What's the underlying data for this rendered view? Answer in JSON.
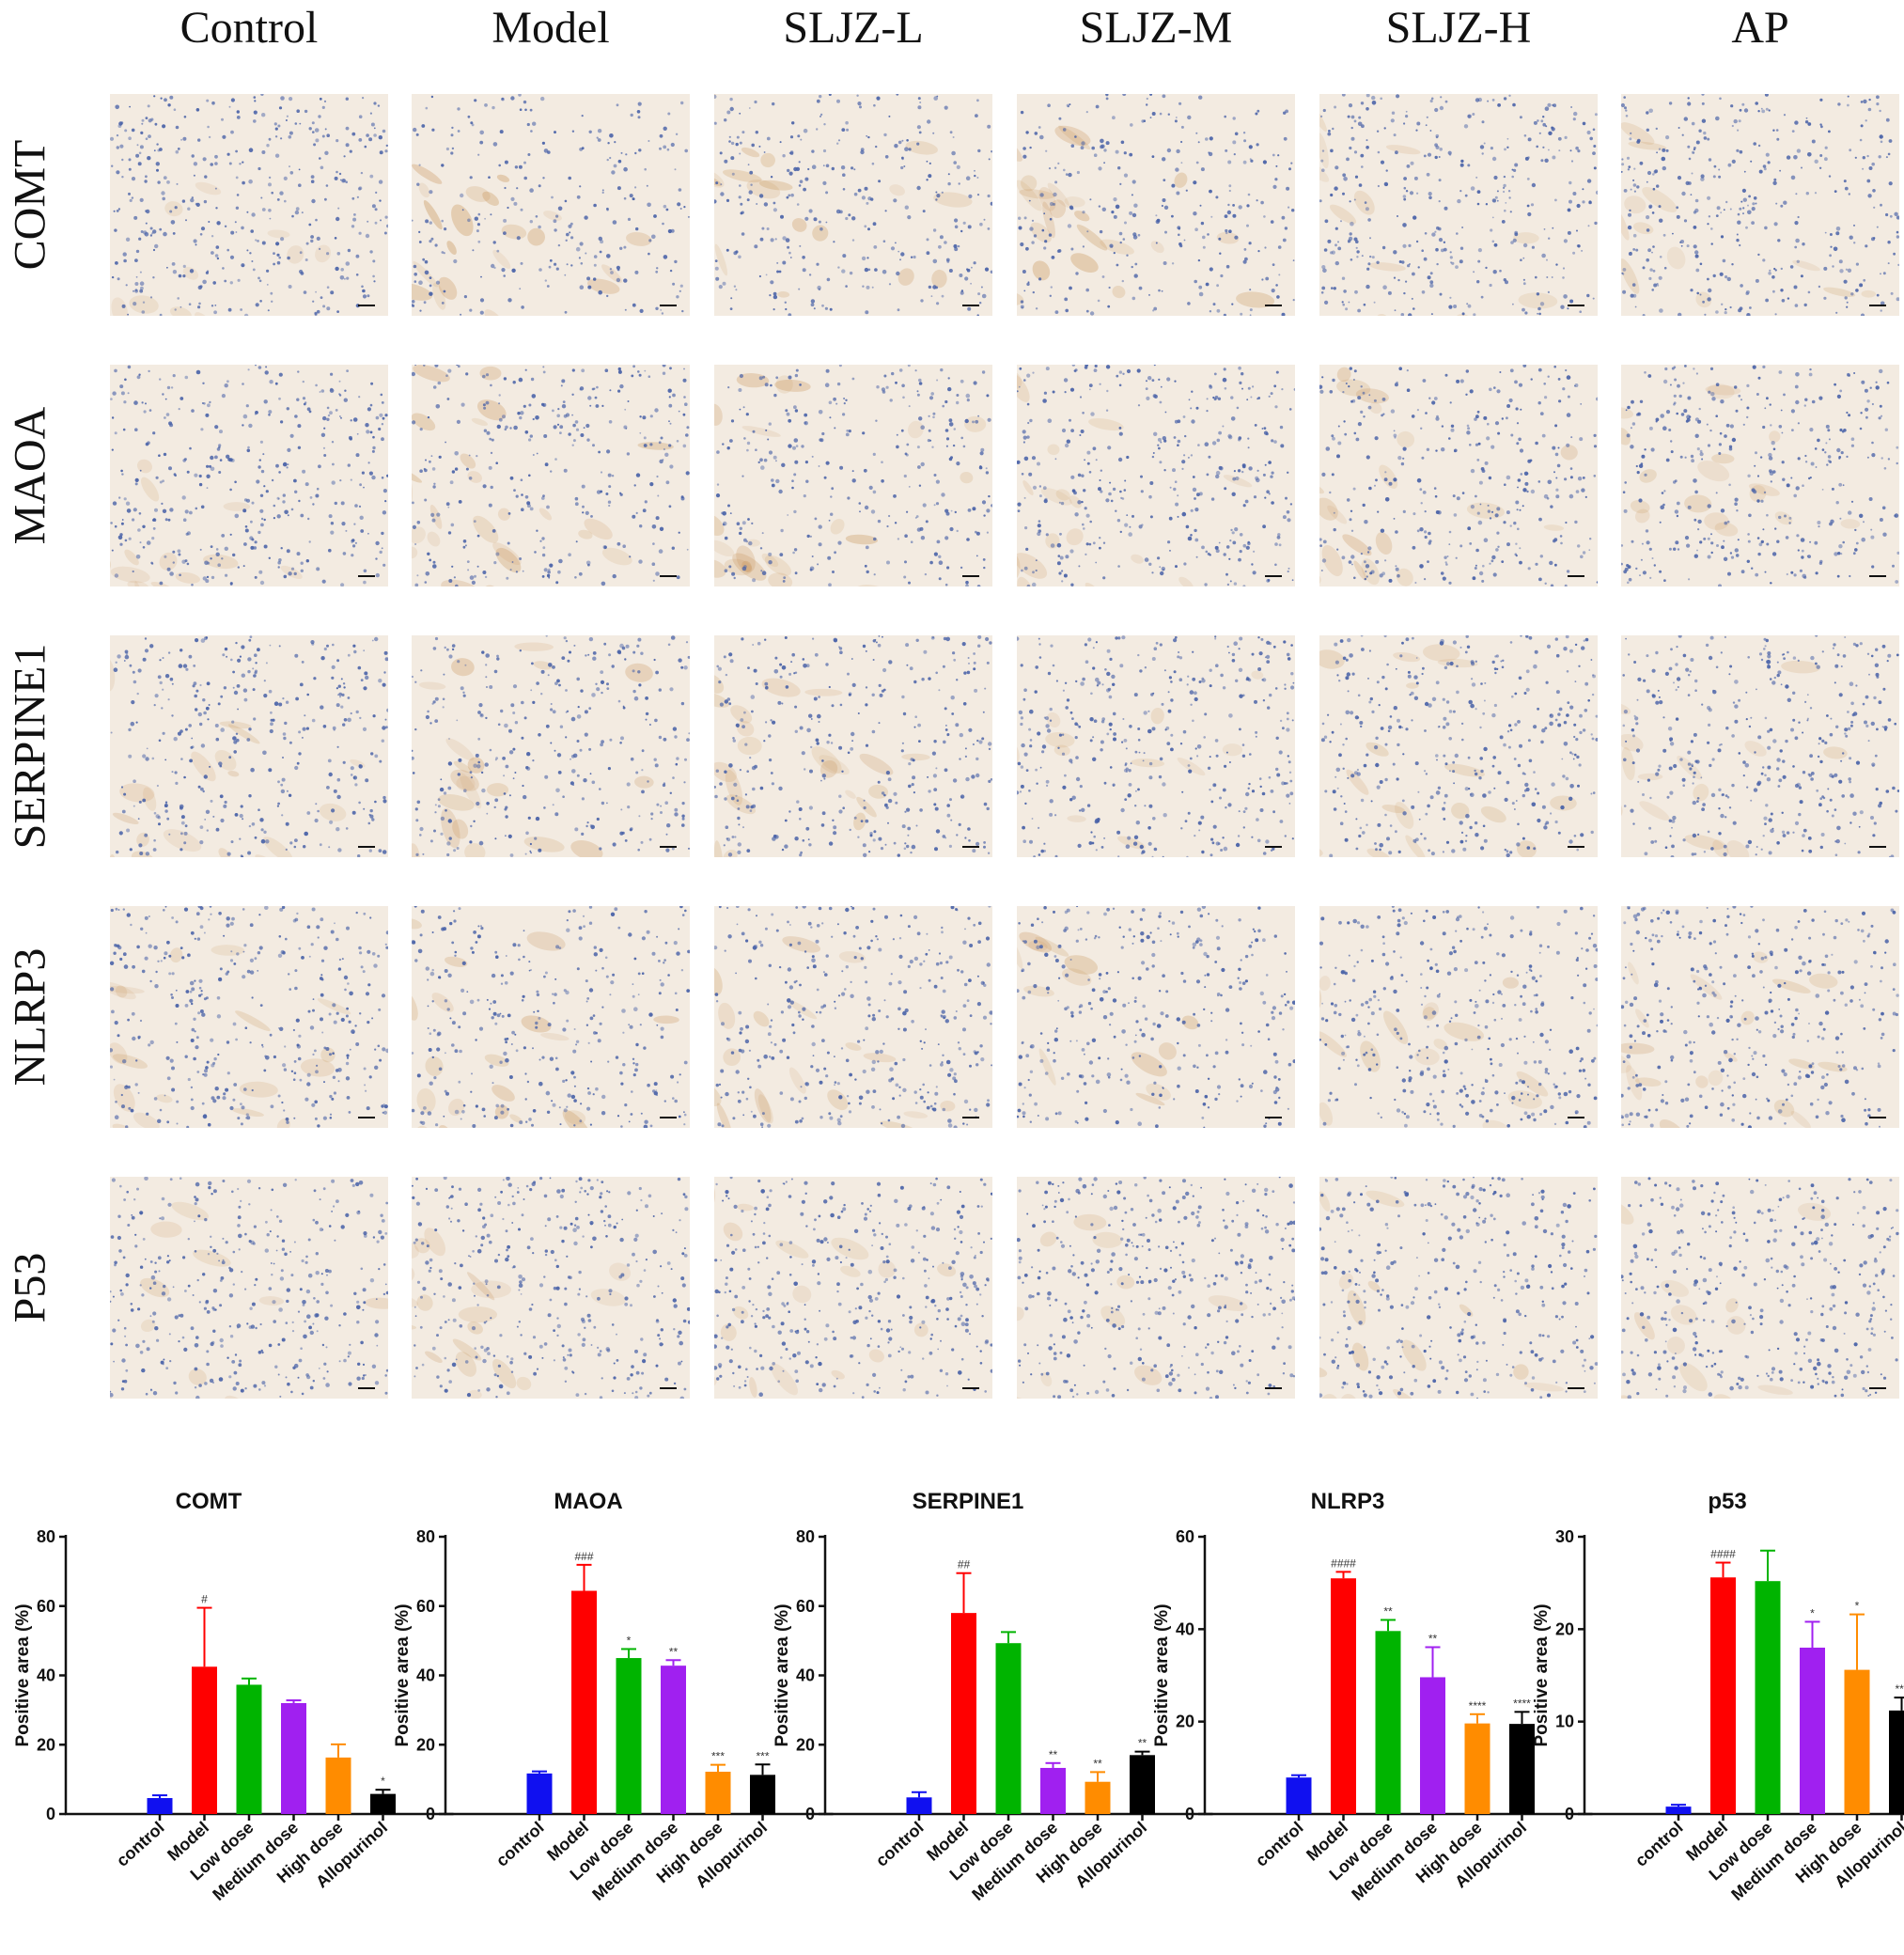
{
  "micrographs": {
    "columns": [
      "Control",
      "Model",
      "SLJZ-L",
      "SLJZ-M",
      "SLJZ-H",
      "AP"
    ],
    "rows": [
      "COMT",
      "MAOA",
      "SERPINE1",
      "NLRP3",
      "P53"
    ]
  },
  "colors": {
    "tissue_background": "#f3ebe1",
    "hematoxylin_nuclei": "#4a63a8",
    "dab_stain": "#c8955a",
    "bar_colors": [
      "#1010f0",
      "#ff0000",
      "#00b400",
      "#a020f0",
      "#ff8c00",
      "#000000"
    ]
  },
  "chart_data": [
    {
      "type": "bar",
      "title": "COMT",
      "xlabel": "",
      "ylabel": "Positive area (%)",
      "ylim": [
        0,
        80
      ],
      "yticks": [
        0,
        20,
        40,
        60,
        80
      ],
      "categories": [
        "control",
        "Model",
        "Low dose",
        "Medium dose",
        "High dose",
        "Allopurinol"
      ],
      "values": [
        4.6,
        42.5,
        37.3,
        32.0,
        16.3,
        5.8
      ],
      "errors": [
        0.8,
        17.0,
        1.8,
        0.8,
        3.8,
        1.2
      ],
      "annotations": [
        "",
        "#",
        "",
        "",
        "",
        "*"
      ]
    },
    {
      "type": "bar",
      "title": "MAOA",
      "xlabel": "",
      "ylabel": "Positive area (%)",
      "ylim": [
        0,
        80
      ],
      "yticks": [
        0,
        20,
        40,
        60,
        80
      ],
      "categories": [
        "control",
        "Model",
        "Low dose",
        "Medium dose",
        "High dose",
        "Allopurinol"
      ],
      "values": [
        11.7,
        64.4,
        45.0,
        42.8,
        12.2,
        11.3
      ],
      "errors": [
        0.6,
        7.5,
        2.6,
        1.6,
        2.0,
        3.0
      ],
      "annotations": [
        "",
        "###",
        "*",
        "**",
        "***",
        "***"
      ]
    },
    {
      "type": "bar",
      "title": "SERPINE1",
      "xlabel": "",
      "ylabel": "Positive area (%)",
      "ylim": [
        0,
        80
      ],
      "yticks": [
        0,
        20,
        40,
        60,
        80
      ],
      "categories": [
        "control",
        "Model",
        "Low dose",
        "Medium dose",
        "High dose",
        "Allopurinol"
      ],
      "values": [
        4.8,
        58.0,
        49.3,
        13.3,
        9.3,
        17.0
      ],
      "errors": [
        1.5,
        11.5,
        3.2,
        1.4,
        2.8,
        1.0
      ],
      "annotations": [
        "",
        "##",
        "",
        "**",
        "**",
        "**"
      ]
    },
    {
      "type": "bar",
      "title": "NLRP3",
      "xlabel": "",
      "ylabel": "Positive area (%)",
      "ylim": [
        0,
        60
      ],
      "yticks": [
        0,
        20,
        40,
        60
      ],
      "categories": [
        "control",
        "Model",
        "Low dose",
        "Medium dose",
        "High dose",
        "Allopurinol"
      ],
      "values": [
        7.9,
        51.0,
        39.6,
        29.6,
        19.6,
        19.5
      ],
      "errors": [
        0.5,
        1.4,
        2.4,
        6.5,
        2.0,
        2.6
      ],
      "annotations": [
        "",
        "####",
        "**",
        "**",
        "****",
        "****"
      ]
    },
    {
      "type": "bar",
      "title": "p53",
      "xlabel": "",
      "ylabel": "Positive area (%)",
      "ylim": [
        0,
        30
      ],
      "yticks": [
        0,
        10,
        20,
        30
      ],
      "categories": [
        "control",
        "Model",
        "Low dose",
        "Medium dose",
        "High dose",
        "Allopurinol"
      ],
      "values": [
        0.8,
        25.6,
        25.2,
        18.0,
        15.6,
        11.2
      ],
      "errors": [
        0.2,
        1.6,
        3.3,
        2.8,
        6.0,
        1.4
      ],
      "annotations": [
        "",
        "####",
        "",
        "*",
        "*",
        "***"
      ]
    }
  ]
}
